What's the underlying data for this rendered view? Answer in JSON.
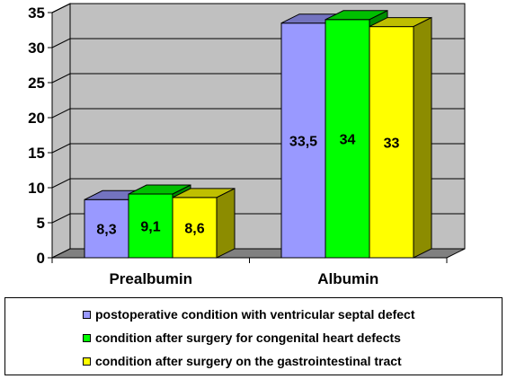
{
  "chart_data": {
    "type": "bar",
    "categories": [
      "Prealbumin",
      "Albumin"
    ],
    "series": [
      {
        "name": "postoperative condition with ventricular septal defect",
        "values": [
          8.3,
          33.5
        ],
        "labels": [
          "8,3",
          "33,5"
        ],
        "color": "#9999ff"
      },
      {
        "name": "condition after surgery for congenital heart defects",
        "values": [
          9.1,
          34
        ],
        "labels": [
          "9,1",
          "34"
        ],
        "color": "#00ff00"
      },
      {
        "name": "condition after surgery on the gastrointestinal tract",
        "values": [
          8.6,
          33
        ],
        "labels": [
          "8,6",
          "33"
        ],
        "color": "#ffff00"
      }
    ],
    "ylim": [
      0,
      35
    ],
    "yticks": [
      "0",
      "5",
      "10",
      "15",
      "20",
      "25",
      "30",
      "35"
    ],
    "grid": true,
    "legend_position": "bottom",
    "colors": {
      "wall": "#c0c0c0",
      "floor": "#808080",
      "grid": "#000000"
    }
  }
}
